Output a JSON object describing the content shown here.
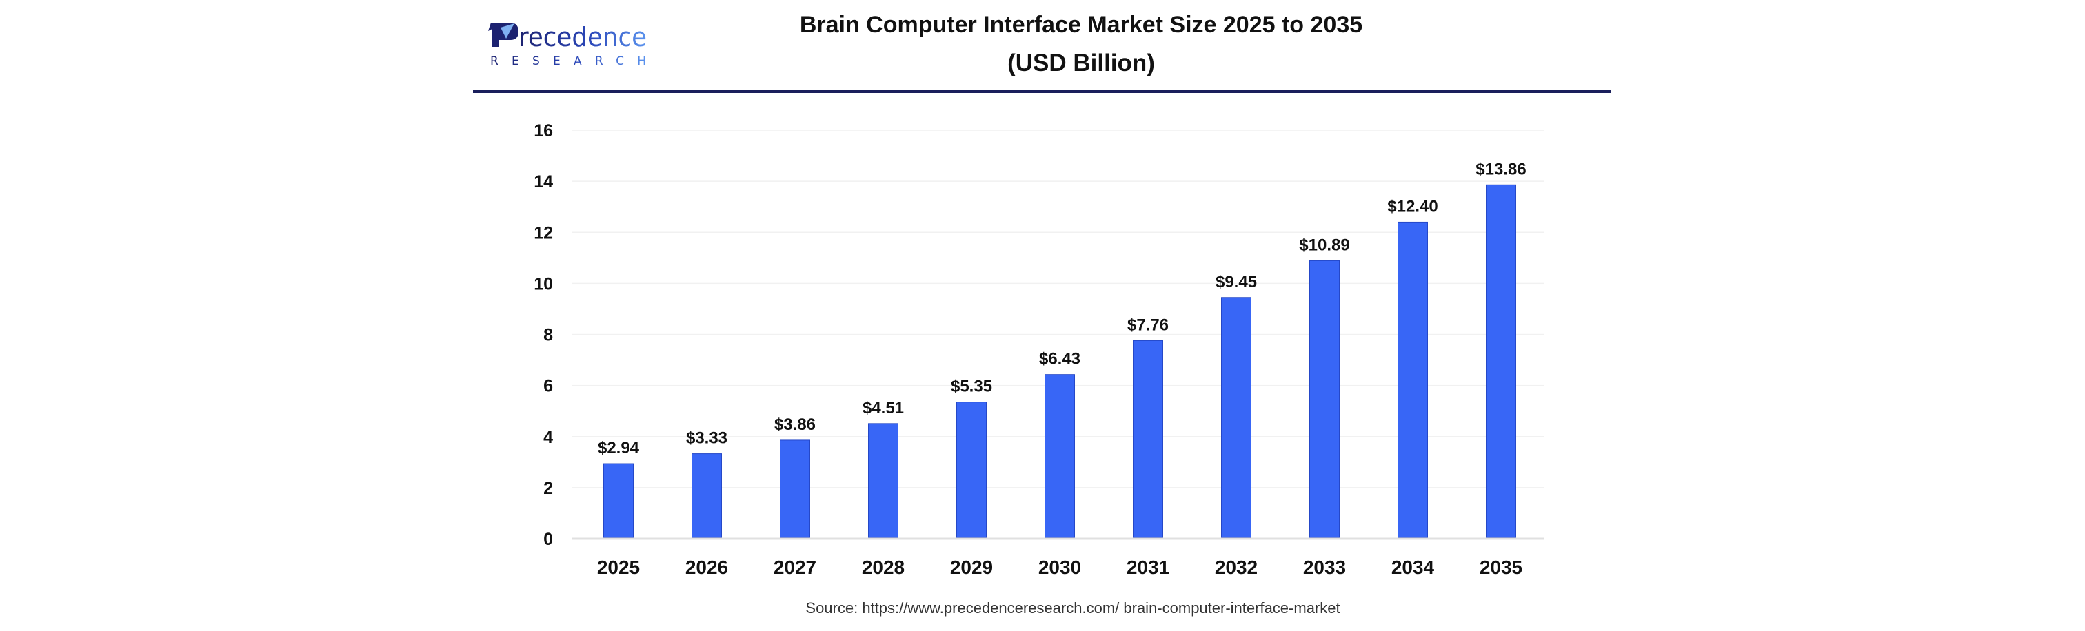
{
  "brand": {
    "logo_word": "Precedence",
    "logo_sub": "RESEARCH",
    "colors": {
      "navy": "#1c2270",
      "blue": "#4f86e8",
      "divider": "#1a1f5c"
    }
  },
  "chart_data": {
    "type": "bar",
    "title": "Brain Computer Interface Market Size 2025 to 2035",
    "subtitle": "(USD Billion)",
    "xlabel": "",
    "ylabel": "",
    "categories": [
      "2025",
      "2026",
      "2027",
      "2028",
      "2029",
      "2030",
      "2031",
      "2032",
      "2033",
      "2034",
      "2035"
    ],
    "values": [
      2.94,
      3.33,
      3.86,
      4.51,
      5.35,
      6.43,
      7.76,
      9.45,
      10.89,
      12.4,
      13.86
    ],
    "data_labels": [
      "$2.94",
      "$3.33",
      "$3.86",
      "$4.51",
      "$5.35",
      "$6.43",
      "$7.76",
      "$9.45",
      "$10.89",
      "$12.40",
      "$13.86"
    ],
    "ylim": [
      0,
      16
    ],
    "yticks": [
      0,
      2,
      4,
      6,
      8,
      10,
      12,
      14,
      16
    ],
    "ytick_labels": [
      "0",
      "2",
      "4",
      "6",
      "8",
      "10",
      "12",
      "14",
      "16"
    ],
    "grid": true,
    "legend": "none",
    "bar_color": "#3866f6",
    "bar_edge_color": "#2548c8",
    "grid_color": "#f1f1f1",
    "axis_color": "#e0e0e0"
  },
  "source": "Source: https://www.precedenceresearch.com/ brain-computer-interface-market"
}
